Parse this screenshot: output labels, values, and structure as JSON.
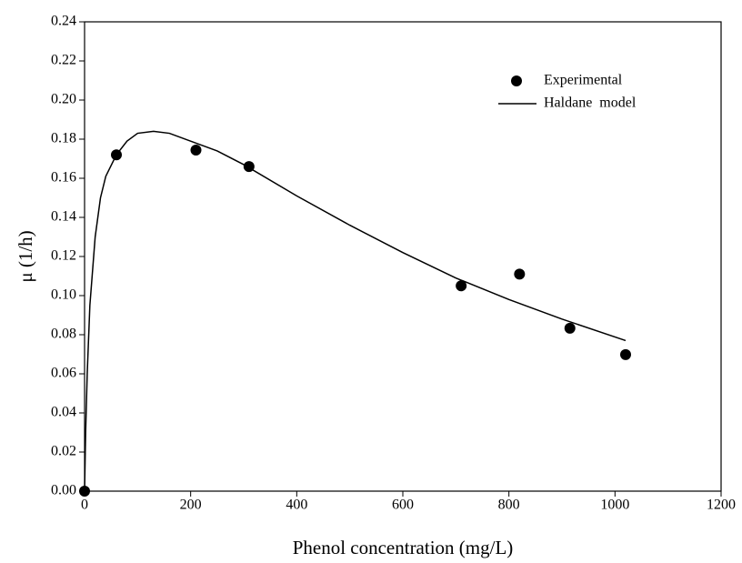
{
  "chart_data": {
    "type": "scatter",
    "x_label": "Phenol concentration (mg/L)",
    "y_label": "μ (1/h)",
    "xlim": [
      0,
      1200
    ],
    "xticks": [
      0,
      200,
      400,
      600,
      800,
      1000,
      1200
    ],
    "ylim": [
      0,
      0.24
    ],
    "yticks": [
      {
        "value": 0,
        "label": "0.00"
      },
      0.02,
      0.04,
      0.06,
      0.08,
      {
        "value": 0.1,
        "label": "0.10"
      },
      0.12,
      0.14,
      0.16,
      0.18,
      {
        "value": 0.2,
        "label": "0.20"
      },
      0.22,
      0.24
    ],
    "legend": "upper right",
    "series": [
      {
        "name": "Experimental",
        "type": "scatter",
        "color": "#000000",
        "x": [
          0,
          60,
          210,
          310,
          710,
          820,
          915,
          1020
        ],
        "values": [
          0,
          0.172,
          0.1744,
          0.166,
          0.105,
          0.111,
          0.0833,
          0.0698
        ]
      },
      {
        "name": "Haldane  model",
        "type": "line",
        "color": "#000000",
        "x": [
          0,
          2,
          5,
          10,
          20,
          30,
          40,
          60,
          80,
          100,
          130,
          160,
          200,
          250,
          300,
          400,
          500,
          600,
          700,
          800,
          900,
          1020
        ],
        "values": [
          0,
          0.03,
          0.06,
          0.095,
          0.13,
          0.15,
          0.161,
          0.172,
          0.179,
          0.183,
          0.184,
          0.183,
          0.179,
          0.174,
          0.167,
          0.151,
          0.136,
          0.122,
          0.109,
          0.098,
          0.088,
          0.077
        ]
      }
    ]
  }
}
